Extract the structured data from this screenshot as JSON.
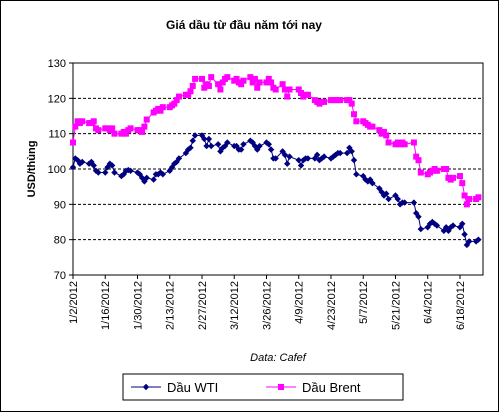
{
  "chart_data": {
    "type": "line",
    "title": "Giá dầu từ đầu năm tới nay",
    "ylabel": "USD/thùng",
    "xlabel": "",
    "source": "Data: Cafef",
    "ylim": [
      70,
      130
    ],
    "yticks": [
      70,
      80,
      90,
      100,
      110,
      120,
      130
    ],
    "grid": "horizontal dashed",
    "legend_position": "bottom",
    "xticks": [
      "1/2/2012",
      "1/16/2012",
      "1/30/2012",
      "2/13/2012",
      "2/27/2012",
      "3/12/2012",
      "3/26/2012",
      "4/9/2012",
      "4/23/2012",
      "5/7/2012",
      "5/21/2012",
      "6/4/2012",
      "6/18/2012"
    ],
    "xstart": "2012-01-02",
    "xend": "2012-06-28",
    "series": [
      {
        "name": "Dầu WTI",
        "color": "#000080",
        "marker": "diamond",
        "points": [
          [
            "2012-01-02",
            100.5
          ],
          [
            "2012-01-03",
            103.0
          ],
          [
            "2012-01-04",
            102.5
          ],
          [
            "2012-01-05",
            101.5
          ],
          [
            "2012-01-06",
            102.0
          ],
          [
            "2012-01-09",
            101.5
          ],
          [
            "2012-01-10",
            102.0
          ],
          [
            "2012-01-11",
            101.0
          ],
          [
            "2012-01-12",
            99.5
          ],
          [
            "2012-01-13",
            99.0
          ],
          [
            "2012-01-16",
            99.0
          ],
          [
            "2012-01-17",
            100.5
          ],
          [
            "2012-01-18",
            101.5
          ],
          [
            "2012-01-19",
            101.0
          ],
          [
            "2012-01-20",
            99.0
          ],
          [
            "2012-01-23",
            98.0
          ],
          [
            "2012-01-24",
            98.5
          ],
          [
            "2012-01-25",
            99.5
          ],
          [
            "2012-01-26",
            99.7
          ],
          [
            "2012-01-27",
            99.5
          ],
          [
            "2012-01-30",
            99.0
          ],
          [
            "2012-01-31",
            98.5
          ],
          [
            "2012-02-01",
            97.5
          ],
          [
            "2012-02-02",
            96.5
          ],
          [
            "2012-02-03",
            97.5
          ],
          [
            "2012-02-06",
            97.0
          ],
          [
            "2012-02-07",
            98.5
          ],
          [
            "2012-02-08",
            98.5
          ],
          [
            "2012-02-09",
            99.0
          ],
          [
            "2012-02-10",
            98.5
          ],
          [
            "2012-02-13",
            99.5
          ],
          [
            "2012-02-14",
            100.5
          ],
          [
            "2012-02-15",
            101.5
          ],
          [
            "2012-02-16",
            102.0
          ],
          [
            "2012-02-17",
            103.0
          ],
          [
            "2012-02-20",
            104.5
          ],
          [
            "2012-02-21",
            105.5
          ],
          [
            "2012-02-22",
            106.0
          ],
          [
            "2012-02-23",
            108.0
          ],
          [
            "2012-02-24",
            109.5
          ],
          [
            "2012-02-27",
            109.5
          ],
          [
            "2012-02-28",
            108.5
          ],
          [
            "2012-02-29",
            106.5
          ],
          [
            "2012-03-01",
            108.5
          ],
          [
            "2012-03-02",
            106.5
          ],
          [
            "2012-03-05",
            107.0
          ],
          [
            "2012-03-06",
            105.0
          ],
          [
            "2012-03-07",
            106.0
          ],
          [
            "2012-03-08",
            106.5
          ],
          [
            "2012-03-09",
            107.5
          ],
          [
            "2012-03-12",
            106.5
          ],
          [
            "2012-03-13",
            106.5
          ],
          [
            "2012-03-14",
            105.5
          ],
          [
            "2012-03-15",
            105.5
          ],
          [
            "2012-03-16",
            107.0
          ],
          [
            "2012-03-19",
            108.0
          ],
          [
            "2012-03-20",
            107.5
          ],
          [
            "2012-03-21",
            106.5
          ],
          [
            "2012-03-22",
            105.5
          ],
          [
            "2012-03-23",
            106.5
          ],
          [
            "2012-03-26",
            107.5
          ],
          [
            "2012-03-27",
            107.0
          ],
          [
            "2012-03-28",
            105.5
          ],
          [
            "2012-03-29",
            103.0
          ],
          [
            "2012-03-30",
            103.0
          ],
          [
            "2012-04-02",
            105.0
          ],
          [
            "2012-04-03",
            104.0
          ],
          [
            "2012-04-04",
            101.5
          ],
          [
            "2012-04-05",
            103.5
          ],
          [
            "2012-04-09",
            102.5
          ],
          [
            "2012-04-10",
            101.0
          ],
          [
            "2012-04-11",
            102.5
          ],
          [
            "2012-04-12",
            103.0
          ],
          [
            "2012-04-13",
            103.0
          ],
          [
            "2012-04-16",
            103.0
          ],
          [
            "2012-04-17",
            104.0
          ],
          [
            "2012-04-18",
            102.5
          ],
          [
            "2012-04-19",
            103.0
          ],
          [
            "2012-04-20",
            103.5
          ],
          [
            "2012-04-23",
            103.0
          ],
          [
            "2012-04-24",
            103.5
          ],
          [
            "2012-04-25",
            104.0
          ],
          [
            "2012-04-26",
            104.5
          ],
          [
            "2012-04-27",
            104.5
          ],
          [
            "2012-04-30",
            104.5
          ],
          [
            "2012-05-01",
            106.0
          ],
          [
            "2012-05-02",
            105.0
          ],
          [
            "2012-05-03",
            102.5
          ],
          [
            "2012-05-04",
            98.5
          ],
          [
            "2012-05-07",
            98.0
          ],
          [
            "2012-05-08",
            97.0
          ],
          [
            "2012-05-09",
            96.5
          ],
          [
            "2012-05-10",
            97.0
          ],
          [
            "2012-05-11",
            96.0
          ],
          [
            "2012-05-14",
            94.5
          ],
          [
            "2012-05-15",
            93.5
          ],
          [
            "2012-05-16",
            92.5
          ],
          [
            "2012-05-17",
            93.0
          ],
          [
            "2012-05-18",
            91.5
          ],
          [
            "2012-05-21",
            92.5
          ],
          [
            "2012-05-22",
            91.5
          ],
          [
            "2012-05-23",
            90.0
          ],
          [
            "2012-05-24",
            90.5
          ],
          [
            "2012-05-25",
            90.5
          ],
          [
            "2012-05-29",
            90.5
          ],
          [
            "2012-05-30",
            87.5
          ],
          [
            "2012-05-31",
            86.5
          ],
          [
            "2012-06-01",
            83.0
          ],
          [
            "2012-06-04",
            83.5
          ],
          [
            "2012-06-05",
            84.5
          ],
          [
            "2012-06-06",
            85.0
          ],
          [
            "2012-06-07",
            84.5
          ],
          [
            "2012-06-08",
            84.0
          ],
          [
            "2012-06-11",
            82.5
          ],
          [
            "2012-06-12",
            83.5
          ],
          [
            "2012-06-13",
            82.5
          ],
          [
            "2012-06-14",
            83.5
          ],
          [
            "2012-06-15",
            84.0
          ],
          [
            "2012-06-18",
            83.5
          ],
          [
            "2012-06-19",
            84.5
          ],
          [
            "2012-06-20",
            81.5
          ],
          [
            "2012-06-21",
            78.5
          ],
          [
            "2012-06-22",
            79.5
          ],
          [
            "2012-06-25",
            79.5
          ],
          [
            "2012-06-26",
            80.0
          ]
        ]
      },
      {
        "name": "Dầu Brent",
        "color": "#ff00ff",
        "marker": "square",
        "points": [
          [
            "2012-01-02",
            107.5
          ],
          [
            "2012-01-03",
            112.0
          ],
          [
            "2012-01-04",
            113.5
          ],
          [
            "2012-01-05",
            113.0
          ],
          [
            "2012-01-06",
            113.5
          ],
          [
            "2012-01-09",
            113.0
          ],
          [
            "2012-01-10",
            113.0
          ],
          [
            "2012-01-11",
            113.5
          ],
          [
            "2012-01-12",
            111.5
          ],
          [
            "2012-01-13",
            111.0
          ],
          [
            "2012-01-16",
            111.5
          ],
          [
            "2012-01-17",
            111.5
          ],
          [
            "2012-01-18",
            111.0
          ],
          [
            "2012-01-19",
            111.5
          ],
          [
            "2012-01-20",
            110.0
          ],
          [
            "2012-01-23",
            110.0
          ],
          [
            "2012-01-24",
            110.5
          ],
          [
            "2012-01-25",
            110.0
          ],
          [
            "2012-01-26",
            111.0
          ],
          [
            "2012-01-27",
            111.5
          ],
          [
            "2012-01-30",
            111.0
          ],
          [
            "2012-01-31",
            111.0
          ],
          [
            "2012-02-01",
            110.5
          ],
          [
            "2012-02-02",
            112.0
          ],
          [
            "2012-02-03",
            114.0
          ],
          [
            "2012-02-06",
            116.0
          ],
          [
            "2012-02-07",
            116.5
          ],
          [
            "2012-02-08",
            117.0
          ],
          [
            "2012-02-09",
            116.5
          ],
          [
            "2012-02-10",
            117.5
          ],
          [
            "2012-02-13",
            117.5
          ],
          [
            "2012-02-14",
            118.0
          ],
          [
            "2012-02-15",
            118.5
          ],
          [
            "2012-02-16",
            119.5
          ],
          [
            "2012-02-17",
            120.5
          ],
          [
            "2012-02-20",
            121.0
          ],
          [
            "2012-02-21",
            121.0
          ],
          [
            "2012-02-22",
            122.0
          ],
          [
            "2012-02-23",
            123.5
          ],
          [
            "2012-02-24",
            125.5
          ],
          [
            "2012-02-27",
            125.5
          ],
          [
            "2012-02-28",
            123.0
          ],
          [
            "2012-02-29",
            124.0
          ],
          [
            "2012-03-01",
            123.5
          ],
          [
            "2012-03-02",
            126.0
          ],
          [
            "2012-03-05",
            124.0
          ],
          [
            "2012-03-06",
            122.5
          ],
          [
            "2012-03-07",
            124.5
          ],
          [
            "2012-03-08",
            125.5
          ],
          [
            "2012-03-09",
            126.0
          ],
          [
            "2012-03-12",
            125.0
          ],
          [
            "2012-03-13",
            125.5
          ],
          [
            "2012-03-14",
            124.5
          ],
          [
            "2012-03-15",
            124.0
          ],
          [
            "2012-03-16",
            125.0
          ],
          [
            "2012-03-19",
            126.0
          ],
          [
            "2012-03-20",
            124.5
          ],
          [
            "2012-03-21",
            125.5
          ],
          [
            "2012-03-22",
            123.0
          ],
          [
            "2012-03-23",
            124.5
          ],
          [
            "2012-03-26",
            124.5
          ],
          [
            "2012-03-27",
            125.5
          ],
          [
            "2012-03-28",
            124.5
          ],
          [
            "2012-03-29",
            123.0
          ],
          [
            "2012-03-30",
            122.5
          ],
          [
            "2012-04-02",
            124.0
          ],
          [
            "2012-04-03",
            122.5
          ],
          [
            "2012-04-04",
            120.5
          ],
          [
            "2012-04-05",
            122.5
          ],
          [
            "2012-04-09",
            122.5
          ],
          [
            "2012-04-10",
            121.5
          ],
          [
            "2012-04-11",
            120.5
          ],
          [
            "2012-04-12",
            121.0
          ],
          [
            "2012-04-13",
            121.0
          ],
          [
            "2012-04-16",
            119.5
          ],
          [
            "2012-04-17",
            119.0
          ],
          [
            "2012-04-18",
            118.5
          ],
          [
            "2012-04-19",
            119.0
          ],
          [
            "2012-04-20",
            119.0
          ],
          [
            "2012-04-23",
            119.5
          ],
          [
            "2012-04-24",
            119.5
          ],
          [
            "2012-04-25",
            119.5
          ],
          [
            "2012-04-26",
            119.5
          ],
          [
            "2012-04-27",
            119.5
          ],
          [
            "2012-04-30",
            119.5
          ],
          [
            "2012-05-01",
            119.5
          ],
          [
            "2012-05-02",
            118.5
          ],
          [
            "2012-05-03",
            115.5
          ],
          [
            "2012-05-04",
            113.5
          ],
          [
            "2012-05-07",
            113.5
          ],
          [
            "2012-05-08",
            113.0
          ],
          [
            "2012-05-09",
            112.5
          ],
          [
            "2012-05-10",
            112.0
          ],
          [
            "2012-05-11",
            112.0
          ],
          [
            "2012-05-14",
            111.0
          ],
          [
            "2012-05-15",
            110.0
          ],
          [
            "2012-05-16",
            110.5
          ],
          [
            "2012-05-17",
            109.5
          ],
          [
            "2012-05-18",
            107.5
          ],
          [
            "2012-05-21",
            107.0
          ],
          [
            "2012-05-22",
            107.5
          ],
          [
            "2012-05-23",
            107.0
          ],
          [
            "2012-05-24",
            107.5
          ],
          [
            "2012-05-25",
            107.0
          ],
          [
            "2012-05-29",
            107.5
          ],
          [
            "2012-05-30",
            103.5
          ],
          [
            "2012-05-31",
            102.5
          ],
          [
            "2012-06-01",
            99.0
          ],
          [
            "2012-06-04",
            98.5
          ],
          [
            "2012-06-05",
            99.0
          ],
          [
            "2012-06-06",
            99.5
          ],
          [
            "2012-06-07",
            100.0
          ],
          [
            "2012-06-08",
            99.5
          ],
          [
            "2012-06-11",
            100.0
          ],
          [
            "2012-06-12",
            100.0
          ],
          [
            "2012-06-13",
            97.5
          ],
          [
            "2012-06-14",
            97.0
          ],
          [
            "2012-06-15",
            97.5
          ],
          [
            "2012-06-18",
            98.0
          ],
          [
            "2012-06-19",
            96.0
          ],
          [
            "2012-06-20",
            92.5
          ],
          [
            "2012-06-21",
            90.0
          ],
          [
            "2012-06-22",
            91.5
          ],
          [
            "2012-06-25",
            91.5
          ],
          [
            "2012-06-26",
            92.0
          ]
        ]
      }
    ]
  }
}
